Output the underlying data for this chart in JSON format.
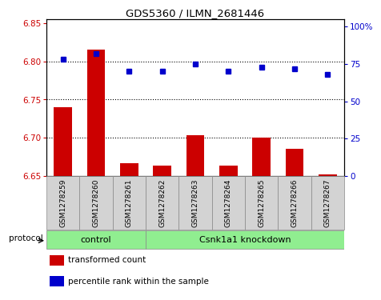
{
  "title": "GDS5360 / ILMN_2681446",
  "samples": [
    "GSM1278259",
    "GSM1278260",
    "GSM1278261",
    "GSM1278262",
    "GSM1278263",
    "GSM1278264",
    "GSM1278265",
    "GSM1278266",
    "GSM1278267"
  ],
  "transformed_count": [
    6.74,
    6.815,
    6.667,
    6.664,
    6.703,
    6.664,
    6.7,
    6.686,
    6.652
  ],
  "percentile_rank": [
    78,
    82,
    70,
    70,
    75,
    70,
    73,
    72,
    68
  ],
  "left_ylim": [
    6.65,
    6.855
  ],
  "left_yticks": [
    6.65,
    6.7,
    6.75,
    6.8,
    6.85
  ],
  "right_ylim": [
    0,
    105
  ],
  "right_yticks": [
    0,
    25,
    50,
    75,
    100
  ],
  "right_tick_labels": [
    "0",
    "25",
    "50",
    "75",
    "100%"
  ],
  "bar_color": "#cc0000",
  "dot_color": "#0000cc",
  "bar_bottom": 6.65,
  "control_count": 3,
  "knockdown_count": 6,
  "group_labels": [
    "control",
    "Csnk1a1 knockdown"
  ],
  "group_color": "#90ee90",
  "protocol_label": "protocol",
  "legend_labels": [
    "transformed count",
    "percentile rank within the sample"
  ],
  "legend_colors": [
    "#cc0000",
    "#0000cc"
  ],
  "dotted_lines": [
    6.7,
    6.75,
    6.8
  ],
  "tick_color_left": "#cc0000",
  "tick_color_right": "#0000cc",
  "sample_box_color": "#d3d3d3",
  "sample_box_edge": "#888888"
}
